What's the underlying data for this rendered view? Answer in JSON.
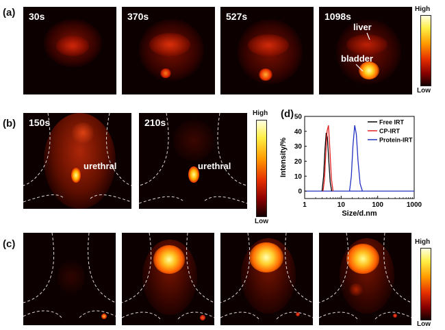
{
  "panels": {
    "a": {
      "label": "(a)",
      "times": [
        "30s",
        "370s",
        "527s",
        "1098s"
      ],
      "liver_label": "liver",
      "bladder_label": "bladder",
      "colorbar": {
        "high": "High",
        "low": "Low"
      }
    },
    "b": {
      "label": "(b)",
      "times": [
        "150s",
        "210s"
      ],
      "annotation": "urethral",
      "colorbar": {
        "high": "High",
        "low": "Low"
      }
    },
    "c": {
      "label": "(c)",
      "colorbar": {
        "high": "High",
        "low": "Low"
      }
    },
    "d": {
      "label": "(d)"
    }
  },
  "chart_data": {
    "type": "line",
    "xlabel": "Size/d.nm",
    "ylabel": "Intensity/%",
    "x_scale": "log",
    "xlim": [
      1,
      1000
    ],
    "ylim": [
      -5,
      50
    ],
    "xticks": [
      1,
      10,
      100,
      1000
    ],
    "yticks": [
      0,
      10,
      20,
      30,
      40,
      50
    ],
    "legend_position": "top-right",
    "series": [
      {
        "name": "Free IRT",
        "color": "#000000",
        "x": [
          3.0,
          3.3,
          3.6,
          3.9,
          4.2,
          4.6,
          5.0,
          5.5
        ],
        "y": [
          0,
          10,
          28,
          39,
          36,
          20,
          6,
          0
        ]
      },
      {
        "name": "CP-IRT",
        "color": "#e02020",
        "x": [
          3.2,
          3.5,
          3.8,
          4.1,
          4.5,
          4.9,
          5.4,
          6.0
        ],
        "y": [
          0,
          8,
          25,
          40,
          44,
          28,
          8,
          0
        ]
      },
      {
        "name": "Protein-IRT",
        "color": "#2030c0",
        "x": [
          17,
          19,
          21,
          23.5,
          26,
          29,
          33,
          38
        ],
        "y": [
          0,
          10,
          30,
          44,
          38,
          20,
          5,
          0
        ]
      }
    ],
    "baseline": {
      "x": [
        1,
        1000
      ],
      "y": [
        0,
        0
      ],
      "color": "#2030c0"
    }
  }
}
